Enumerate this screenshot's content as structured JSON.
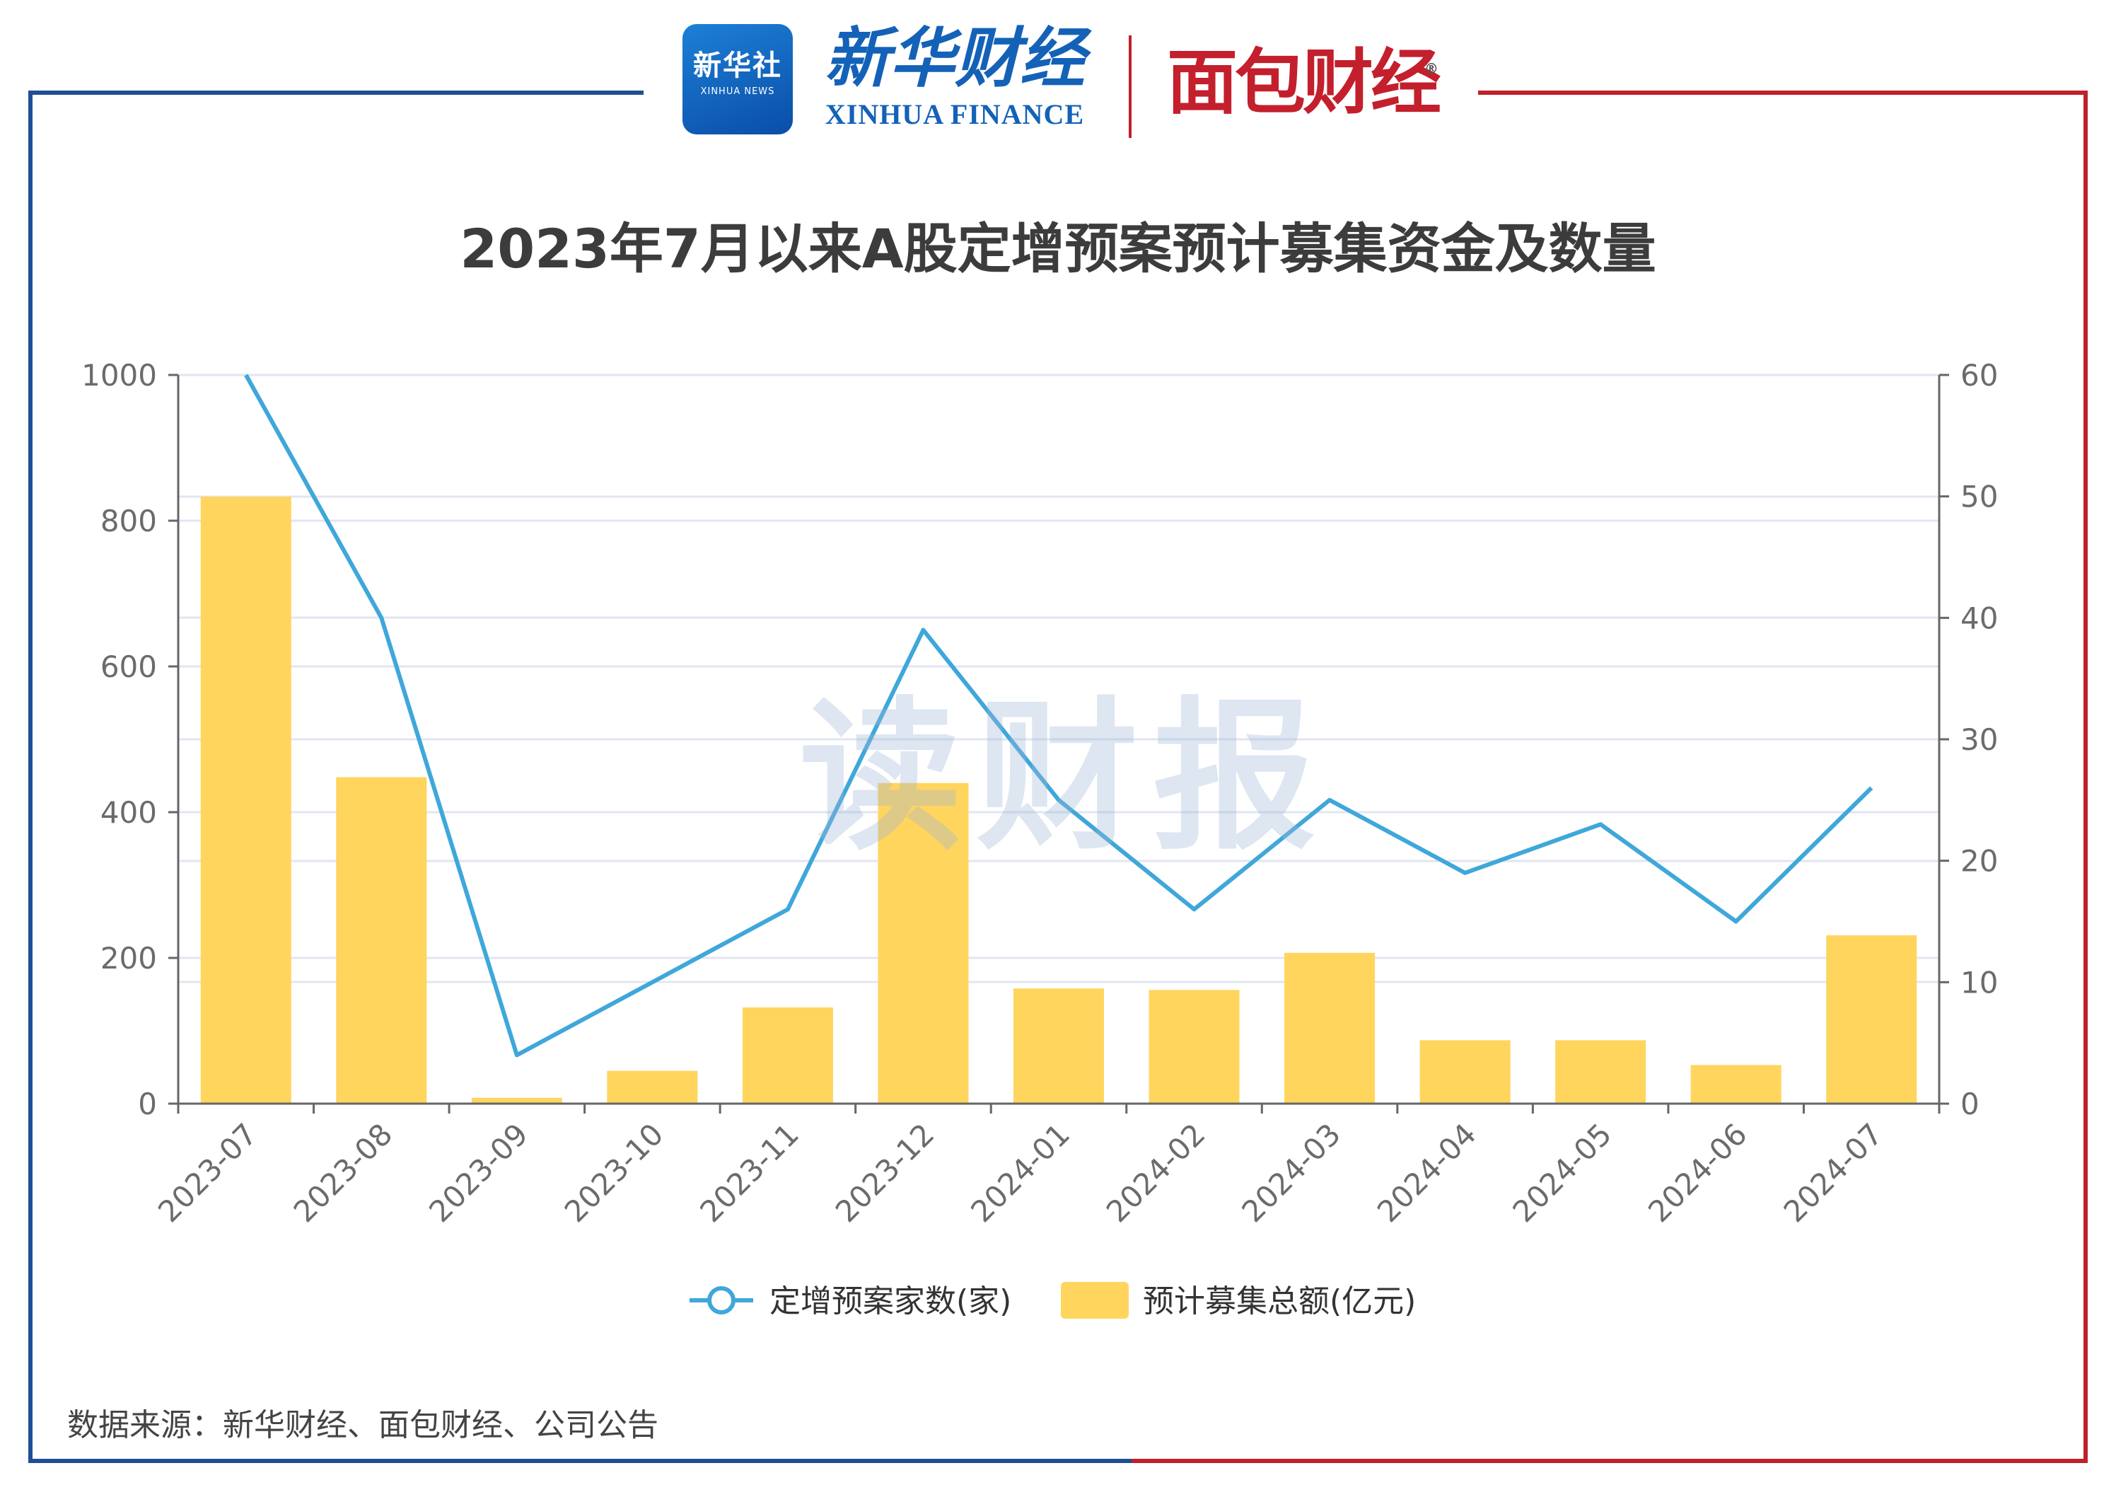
{
  "header": {
    "xinhua_badge_text": "新华社",
    "xinhua_badge_subtext": "XINHUA NEWS",
    "xinhua_finance_cn": "新华财经",
    "xinhua_finance_en": "XINHUA FINANCE",
    "mianbao_logo": "面包财经",
    "registered_mark": "®"
  },
  "watermark": "读财报",
  "source_note": "数据来源：新华财经、面包财经、公司公告",
  "colors": {
    "bar": "#FFD55E",
    "line": "#3FA7DA",
    "frame_left": "#1f4e96",
    "frame_right": "#c0202a",
    "grid": "#e1e6f0"
  },
  "chart_data": {
    "type": "bar",
    "title": "2023年7月以来A股定增预案预计募集资金及数量",
    "categories": [
      "2023-07",
      "2023-08",
      "2023-09",
      "2023-10",
      "2023-11",
      "2023-12",
      "2024-01",
      "2024-02",
      "2024-03",
      "2024-04",
      "2024-05",
      "2024-06",
      "2024-07"
    ],
    "series": [
      {
        "name": "定增预案家数(家)",
        "type": "line",
        "axis": "right",
        "values": [
          60,
          40,
          4,
          10,
          16,
          39,
          25,
          16,
          25,
          19,
          23,
          15,
          26
        ]
      },
      {
        "name": "预计募集总额(亿元)",
        "type": "bar",
        "axis": "left",
        "values": [
          833,
          448,
          8,
          45,
          132,
          440,
          158,
          156,
          207,
          87,
          87,
          53,
          231
        ]
      }
    ],
    "y_left": {
      "min": 0,
      "max": 1000,
      "ticks": [
        "0",
        "200",
        "400",
        "600",
        "800",
        "1000"
      ]
    },
    "y_right": {
      "min": 0,
      "max": 60,
      "ticks": [
        "0",
        "10",
        "20",
        "30",
        "40",
        "50",
        "60"
      ]
    },
    "grid": true,
    "legend_position": "bottom"
  }
}
